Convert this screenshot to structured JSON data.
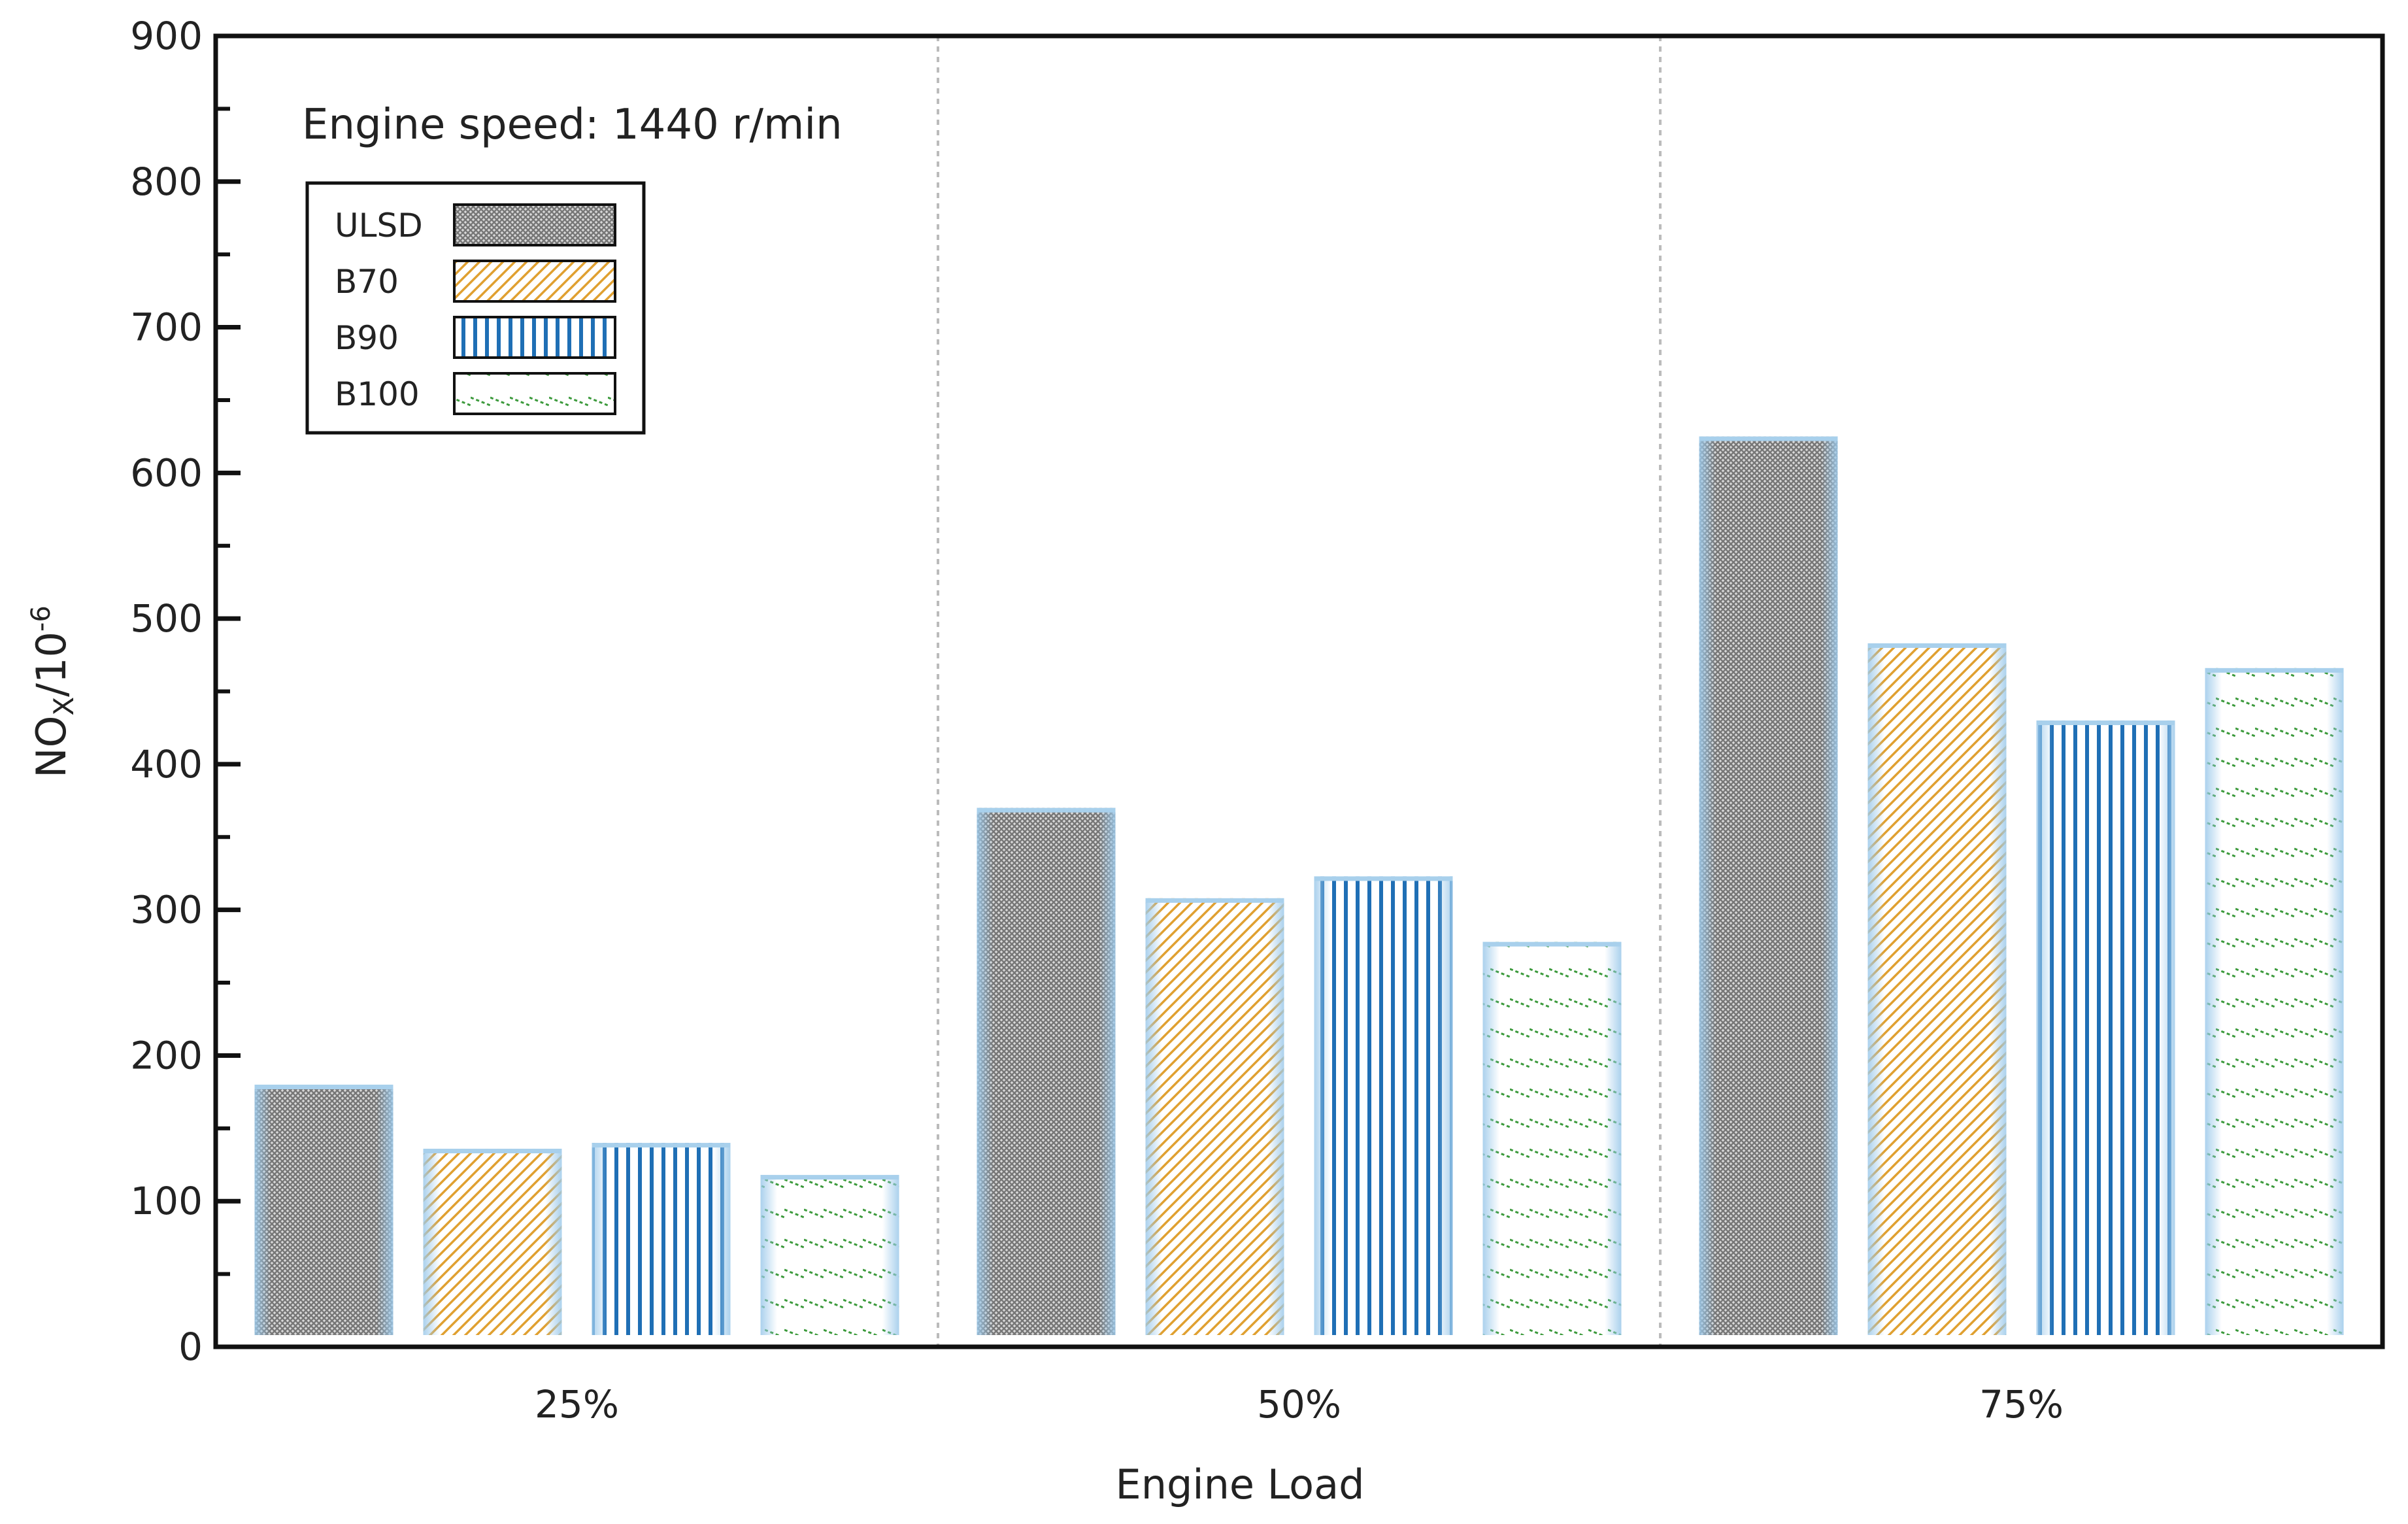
{
  "chart_data": {
    "type": "bar",
    "title": "",
    "xlabel": "Engine Load",
    "ylabel_main": "NO",
    "ylabel_sub": "X",
    "ylabel_tail": "/10",
    "ylabel_sup": "-6",
    "annotation": "Engine speed: 1440  r/min",
    "categories": [
      "25%",
      "50%",
      "75%"
    ],
    "ylim": [
      0,
      900
    ],
    "yticks": [
      0,
      100,
      200,
      300,
      400,
      500,
      600,
      700,
      800,
      900
    ],
    "grid": false,
    "legend_position": "top-left",
    "series": [
      {
        "name": "ULSD",
        "values": [
          180,
          370,
          625
        ],
        "pattern": "crosshatch",
        "color": "#888888"
      },
      {
        "name": "B70",
        "values": [
          136,
          308,
          483
        ],
        "pattern": "diagonal",
        "color": "#E0A030"
      },
      {
        "name": "B90",
        "values": [
          140,
          323,
          430
        ],
        "pattern": "vertical",
        "color": "#1F6FB5"
      },
      {
        "name": "B100",
        "values": [
          118,
          278,
          466
        ],
        "pattern": "dotted-diagonal",
        "color": "#3C9A3C"
      }
    ],
    "edge_color": "#A8D0EC",
    "separator_color": "#BBBBBB"
  }
}
